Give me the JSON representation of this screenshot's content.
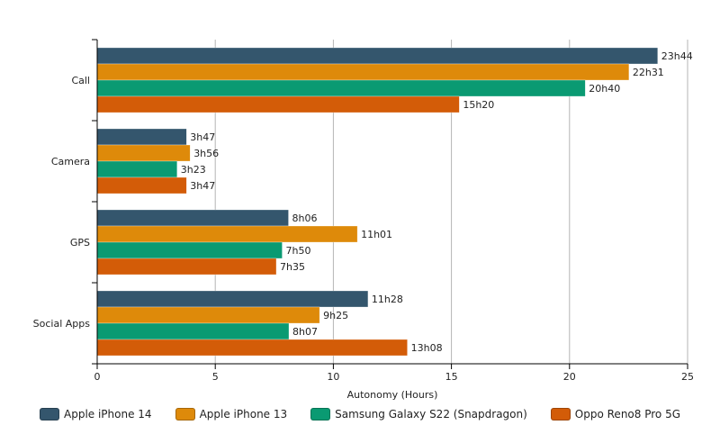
{
  "chart_data": {
    "type": "bar",
    "orientation": "horizontal",
    "title": "",
    "xlabel": "Autonomy (Hours)",
    "ylabel": "",
    "xlim": [
      0,
      25
    ],
    "xticks": [
      0,
      5,
      10,
      15,
      20,
      25
    ],
    "grid": true,
    "legend_position": "bottom",
    "categories": [
      "Call",
      "Camera",
      "GPS",
      "Social Apps"
    ],
    "series": [
      {
        "name": "Apple iPhone 14",
        "color": "#34566d",
        "values": [
          23.733,
          3.783,
          8.1,
          11.467
        ],
        "labels": [
          "23h44",
          "3h47",
          "8h06",
          "11h28"
        ]
      },
      {
        "name": "Apple iPhone 13",
        "color": "#de8a0a",
        "values": [
          22.517,
          3.933,
          11.017,
          9.417
        ],
        "labels": [
          "22h31",
          "3h56",
          "11h01",
          "9h25"
        ]
      },
      {
        "name": "Samsung Galaxy S22 (Snapdragon)",
        "color": "#0a9a72",
        "values": [
          20.667,
          3.383,
          7.833,
          8.117
        ],
        "labels": [
          "20h40",
          "3h23",
          "7h50",
          "8h07"
        ]
      },
      {
        "name": "Oppo Reno8 Pro 5G",
        "color": "#d35c08",
        "values": [
          15.333,
          3.783,
          7.583,
          13.133
        ],
        "labels": [
          "15h20",
          "3h47",
          "7h35",
          "13h08"
        ]
      }
    ]
  }
}
